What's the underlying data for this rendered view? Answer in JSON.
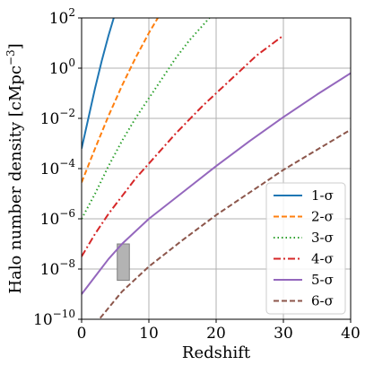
{
  "chart_data": {
    "type": "line",
    "xlabel": "Redshift",
    "ylabel": "Halo number density [cMpc",
    "ylabel_exp": "−3",
    "ylabel_close": "]",
    "xlim": [
      0,
      40
    ],
    "ylim_log10": [
      -10,
      2
    ],
    "yscale": "log",
    "grid": true,
    "legend_placement": "lower-right",
    "x_ticks": [
      0,
      10,
      20,
      30,
      40
    ],
    "y_ticks": [
      {
        "base": "10",
        "exp": "−10",
        "log": -10
      },
      {
        "base": "10",
        "exp": "−8",
        "log": -8
      },
      {
        "base": "10",
        "exp": "−6",
        "log": -6
      },
      {
        "base": "10",
        "exp": "−4",
        "log": -4
      },
      {
        "base": "10",
        "exp": "−2",
        "log": -2
      },
      {
        "base": "10",
        "exp": "0",
        "log": 0
      },
      {
        "base": "10",
        "exp": "2",
        "log": 2
      }
    ],
    "series": [
      {
        "name": "1-σ",
        "color": "#1f77b4",
        "dash": "solid",
        "x": [
          0,
          1,
          2,
          3,
          4,
          5,
          6
        ],
        "log_y": [
          -3.2,
          -2.0,
          -0.8,
          0.3,
          1.3,
          2.2,
          3.0
        ]
      },
      {
        "name": "2-σ",
        "color": "#ff7f0e",
        "dash": "dashed",
        "x": [
          0,
          2,
          4,
          6,
          8,
          10,
          12
        ],
        "log_y": [
          -4.55,
          -3.2,
          -1.9,
          -0.7,
          0.4,
          1.4,
          2.3
        ]
      },
      {
        "name": "3-σ",
        "color": "#2ca02c",
        "dash": "dotted",
        "x": [
          0,
          2,
          4,
          6,
          8,
          10,
          12,
          14,
          16,
          18,
          20
        ],
        "log_y": [
          -6.0,
          -5.0,
          -3.9,
          -2.9,
          -2.0,
          -1.2,
          -0.4,
          0.4,
          1.1,
          1.7,
          2.3
        ]
      },
      {
        "name": "4-σ",
        "color": "#d62728",
        "dash": "dashdot",
        "x": [
          0,
          2,
          4,
          6,
          8,
          10,
          14,
          18,
          22,
          26,
          30
        ],
        "log_y": [
          -7.5,
          -6.6,
          -5.8,
          -5.1,
          -4.4,
          -3.8,
          -2.6,
          -1.5,
          -0.5,
          0.5,
          1.3
        ]
      },
      {
        "name": "5-σ",
        "color": "#9467bd",
        "dash": "solid",
        "x": [
          0,
          2,
          4,
          6,
          10,
          15,
          20,
          25,
          30,
          35,
          40
        ],
        "log_y": [
          -9.0,
          -8.3,
          -7.6,
          -7.0,
          -6.0,
          -4.95,
          -3.9,
          -2.9,
          -1.95,
          -1.05,
          -0.2
        ]
      },
      {
        "name": "6-σ",
        "color": "#8c564b",
        "dash": "dashed",
        "x": [
          2,
          4,
          6,
          10,
          15,
          20,
          25,
          30,
          35,
          40
        ],
        "log_y": [
          -10.2,
          -9.55,
          -8.9,
          -7.9,
          -6.85,
          -5.85,
          -4.95,
          -4.05,
          -3.25,
          -2.45
        ]
      }
    ],
    "shaded_box": {
      "x": [
        5.3,
        7.1
      ],
      "log_y": [
        -8.45,
        -7.0
      ],
      "color": "#b3b3b3",
      "edge": "#7f7f7f"
    }
  }
}
